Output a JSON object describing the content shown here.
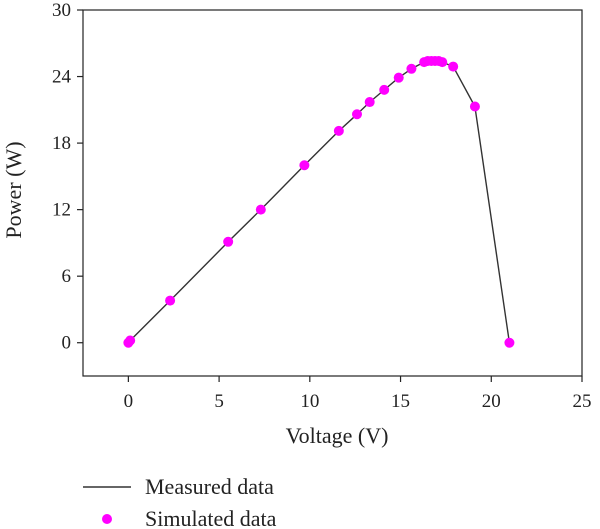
{
  "chart_data": {
    "type": "line",
    "xlabel": "Voltage (V)",
    "ylabel": "Power (W)",
    "xlim": [
      -2.5,
      25
    ],
    "ylim": [
      -3,
      30
    ],
    "xticks": [
      0,
      5,
      10,
      15,
      20,
      25
    ],
    "yticks": [
      0,
      6,
      12,
      18,
      24,
      30
    ],
    "grid": false,
    "legend_position": "bottom-left",
    "series": [
      {
        "name": "Measured data",
        "style": "line",
        "color": "#333333",
        "x": [
          0.0,
          0.1,
          2.3,
          5.5,
          7.3,
          9.7,
          11.6,
          12.6,
          13.3,
          14.1,
          14.9,
          15.6,
          16.3,
          16.5,
          16.7,
          16.9,
          17.1,
          17.3,
          17.9,
          19.1,
          21.0
        ],
        "y": [
          0.0,
          0.2,
          3.8,
          9.1,
          12.0,
          16.0,
          19.1,
          20.6,
          21.7,
          22.8,
          23.9,
          24.7,
          25.3,
          25.4,
          25.4,
          25.4,
          25.4,
          25.3,
          24.9,
          21.3,
          0.0
        ]
      },
      {
        "name": "Simulated data",
        "style": "markers",
        "color": "#ff00ff",
        "x": [
          0.0,
          0.1,
          2.3,
          5.5,
          7.3,
          9.7,
          11.6,
          12.6,
          13.3,
          14.1,
          14.9,
          15.6,
          16.3,
          16.5,
          16.7,
          16.9,
          17.1,
          17.3,
          17.9,
          19.1,
          21.0
        ],
        "y": [
          0.0,
          0.2,
          3.8,
          9.1,
          12.0,
          16.0,
          19.1,
          20.6,
          21.7,
          22.8,
          23.9,
          24.7,
          25.3,
          25.4,
          25.4,
          25.4,
          25.4,
          25.3,
          24.9,
          21.3,
          0.0
        ]
      }
    ]
  }
}
